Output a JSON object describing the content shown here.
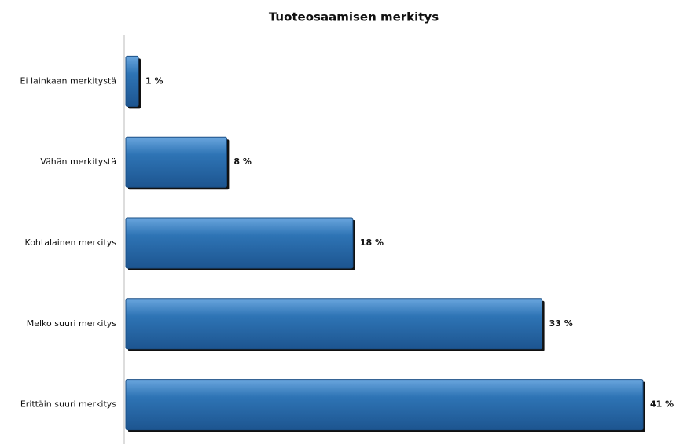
{
  "chart_data": {
    "type": "bar",
    "orientation": "horizontal",
    "title": "Tuoteosaamisen merkitys",
    "categories": [
      "Ei lainkaan merkitystä",
      "Vähän merkitystä",
      "Kohtalainen merkitys",
      "Melko suuri merkitys",
      "Erittäin suuri merkitys"
    ],
    "values": [
      1,
      8,
      18,
      33,
      41
    ],
    "value_labels": [
      "1 %",
      "8 %",
      "18 %",
      "33 %",
      "41 %"
    ],
    "color": "#2e74b5"
  }
}
